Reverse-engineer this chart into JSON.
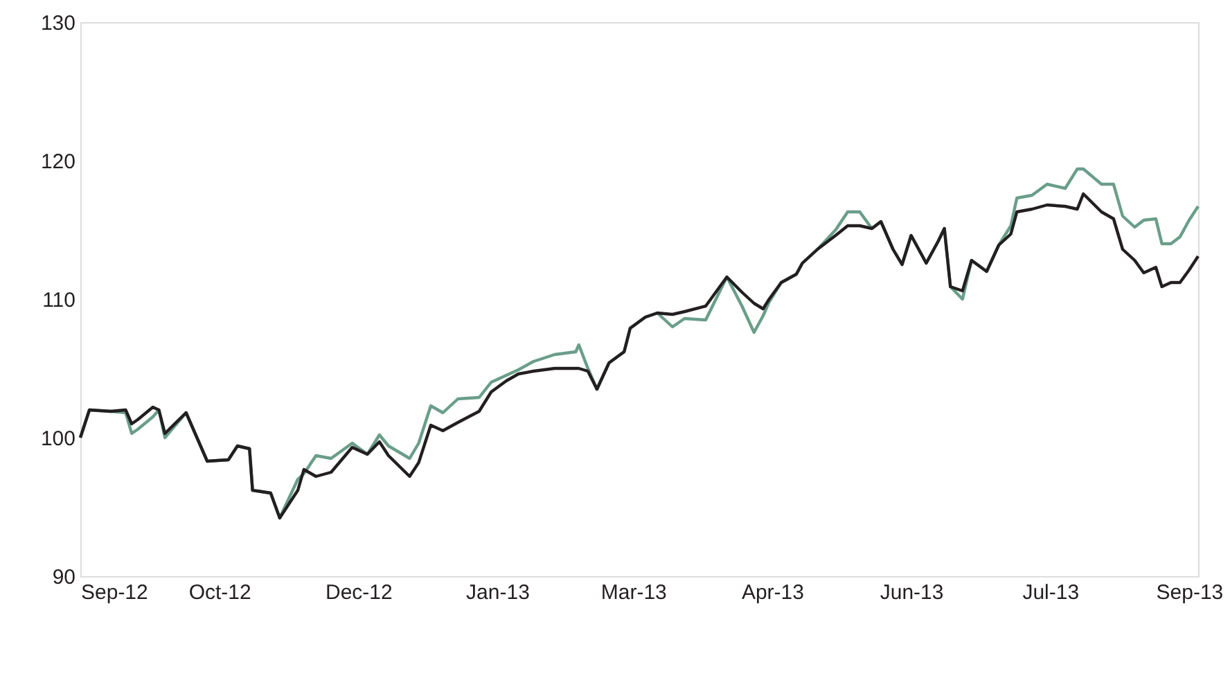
{
  "chart_data": {
    "type": "line",
    "x": [
      "2012-09-04",
      "2012-09-07",
      "2012-09-14",
      "2012-09-19",
      "2012-09-21",
      "2012-09-23",
      "2012-09-28",
      "2012-09-30",
      "2012-10-02",
      "2012-10-09",
      "2012-10-12",
      "2012-10-16",
      "2012-10-23",
      "2012-10-26",
      "2012-10-30",
      "2012-10-31",
      "2012-11-06",
      "2012-11-09",
      "2012-11-15",
      "2012-11-17",
      "2012-11-21",
      "2012-11-26",
      "2012-12-03",
      "2012-12-08",
      "2012-12-12",
      "2012-12-15",
      "2012-12-22",
      "2012-12-25",
      "2012-12-29",
      "2013-01-02",
      "2013-01-07",
      "2013-01-14",
      "2013-01-18",
      "2013-01-23",
      "2013-01-27",
      "2013-02-01",
      "2013-02-08",
      "2013-02-15",
      "2013-02-16",
      "2013-02-19",
      "2013-02-22",
      "2013-02-26",
      "2013-03-03",
      "2013-03-05",
      "2013-03-10",
      "2013-03-14",
      "2013-03-19",
      "2013-03-23",
      "2013-03-30",
      "2013-04-06",
      "2013-04-11",
      "2013-04-15",
      "2013-04-18",
      "2013-04-20",
      "2013-04-24",
      "2013-04-29",
      "2013-05-01",
      "2013-05-06",
      "2013-05-12",
      "2013-05-16",
      "2013-05-20",
      "2013-05-24",
      "2013-05-27",
      "2013-05-31",
      "2013-06-03",
      "2013-06-06",
      "2013-06-11",
      "2013-06-15",
      "2013-06-17",
      "2013-06-19",
      "2013-06-23",
      "2013-06-26",
      "2013-07-01",
      "2013-07-05",
      "2013-07-09",
      "2013-07-11",
      "2013-07-16",
      "2013-07-21",
      "2013-07-27",
      "2013-07-31",
      "2013-08-02",
      "2013-08-08",
      "2013-08-12",
      "2013-08-15",
      "2013-08-19",
      "2013-08-22",
      "2013-08-26",
      "2013-08-28",
      "2013-08-31",
      "2013-09-03",
      "2013-09-06",
      "2013-09-09"
    ],
    "series": [
      {
        "color": "#6a9e8a",
        "values": [
          100,
          102,
          101.9,
          101.8,
          100.3,
          100.6,
          101.5,
          102,
          100,
          101.8,
          100.3,
          98.3,
          98.4,
          99.4,
          99.2,
          96.2,
          96,
          94.2,
          97,
          97.4,
          98.7,
          98.5,
          99.6,
          98.8,
          100.2,
          99.4,
          98.5,
          99.6,
          102.3,
          101.8,
          102.8,
          102.9,
          104,
          104.5,
          104.9,
          105.5,
          106,
          106.2,
          106.7,
          105,
          103.5,
          105.4,
          106.2,
          107.9,
          108.7,
          109,
          108,
          108.6,
          108.5,
          111.6,
          109.5,
          107.6,
          108.8,
          109.8,
          111.2,
          111.8,
          112.6,
          113.6,
          115,
          116.3,
          116.3,
          115.1,
          115.6,
          113.6,
          112.5,
          114.6,
          112.6,
          114.2,
          115.1,
          110.9,
          110,
          112.8,
          112,
          113.9,
          115.3,
          117.3,
          117.5,
          118.3,
          118,
          119.4,
          119.4,
          118.3,
          118.3,
          116,
          115.2,
          115.7,
          115.8,
          114,
          114,
          114.5,
          115.7,
          116.7
        ]
      },
      {
        "color": "#231f20",
        "values": [
          100,
          102,
          101.9,
          102,
          101,
          101.3,
          102.2,
          102,
          100.3,
          101.8,
          100.3,
          98.3,
          98.4,
          99.4,
          99.2,
          96.2,
          96,
          94.2,
          96.2,
          97.7,
          97.2,
          97.5,
          99.3,
          98.8,
          99.7,
          98.7,
          97.2,
          98.2,
          100.9,
          100.5,
          101.1,
          101.9,
          103.3,
          104.1,
          104.6,
          104.8,
          105,
          105,
          105,
          104.8,
          103.5,
          105.4,
          106.2,
          107.9,
          108.7,
          109,
          108.9,
          109.1,
          109.5,
          111.6,
          110.5,
          109.7,
          109.3,
          110,
          111.2,
          111.8,
          112.6,
          113.6,
          114.6,
          115.3,
          115.3,
          115.1,
          115.6,
          113.6,
          112.5,
          114.6,
          112.6,
          114.2,
          115.1,
          110.9,
          110.6,
          112.8,
          112,
          113.9,
          114.7,
          116.3,
          116.5,
          116.8,
          116.7,
          116.5,
          117.6,
          116.3,
          115.8,
          113.6,
          112.8,
          111.9,
          112.3,
          110.9,
          111.2,
          111.2,
          112.1,
          113.1
        ]
      }
    ],
    "xlim": [
      "2012-09-04",
      "2013-09-09"
    ],
    "xticks": [
      {
        "value": "2012-09-04",
        "label": "Sep-12"
      },
      {
        "value": "2012-10-20",
        "label": "Oct-12"
      },
      {
        "value": "2012-12-05",
        "label": "Dec-12"
      },
      {
        "value": "2013-01-20",
        "label": "Jan-13"
      },
      {
        "value": "2013-03-06",
        "label": "Mar-13"
      },
      {
        "value": "2013-04-21",
        "label": "Apr-13"
      },
      {
        "value": "2013-06-06",
        "label": "Jun-13"
      },
      {
        "value": "2013-07-22",
        "label": "Jul-13"
      },
      {
        "value": "2013-09-06",
        "label": "Sep-13"
      }
    ],
    "ylim": [
      90,
      130
    ],
    "yticks": [
      90,
      100,
      110,
      120,
      130
    ],
    "grid": false,
    "legend": false,
    "line_style": "solid",
    "marker": "none"
  }
}
